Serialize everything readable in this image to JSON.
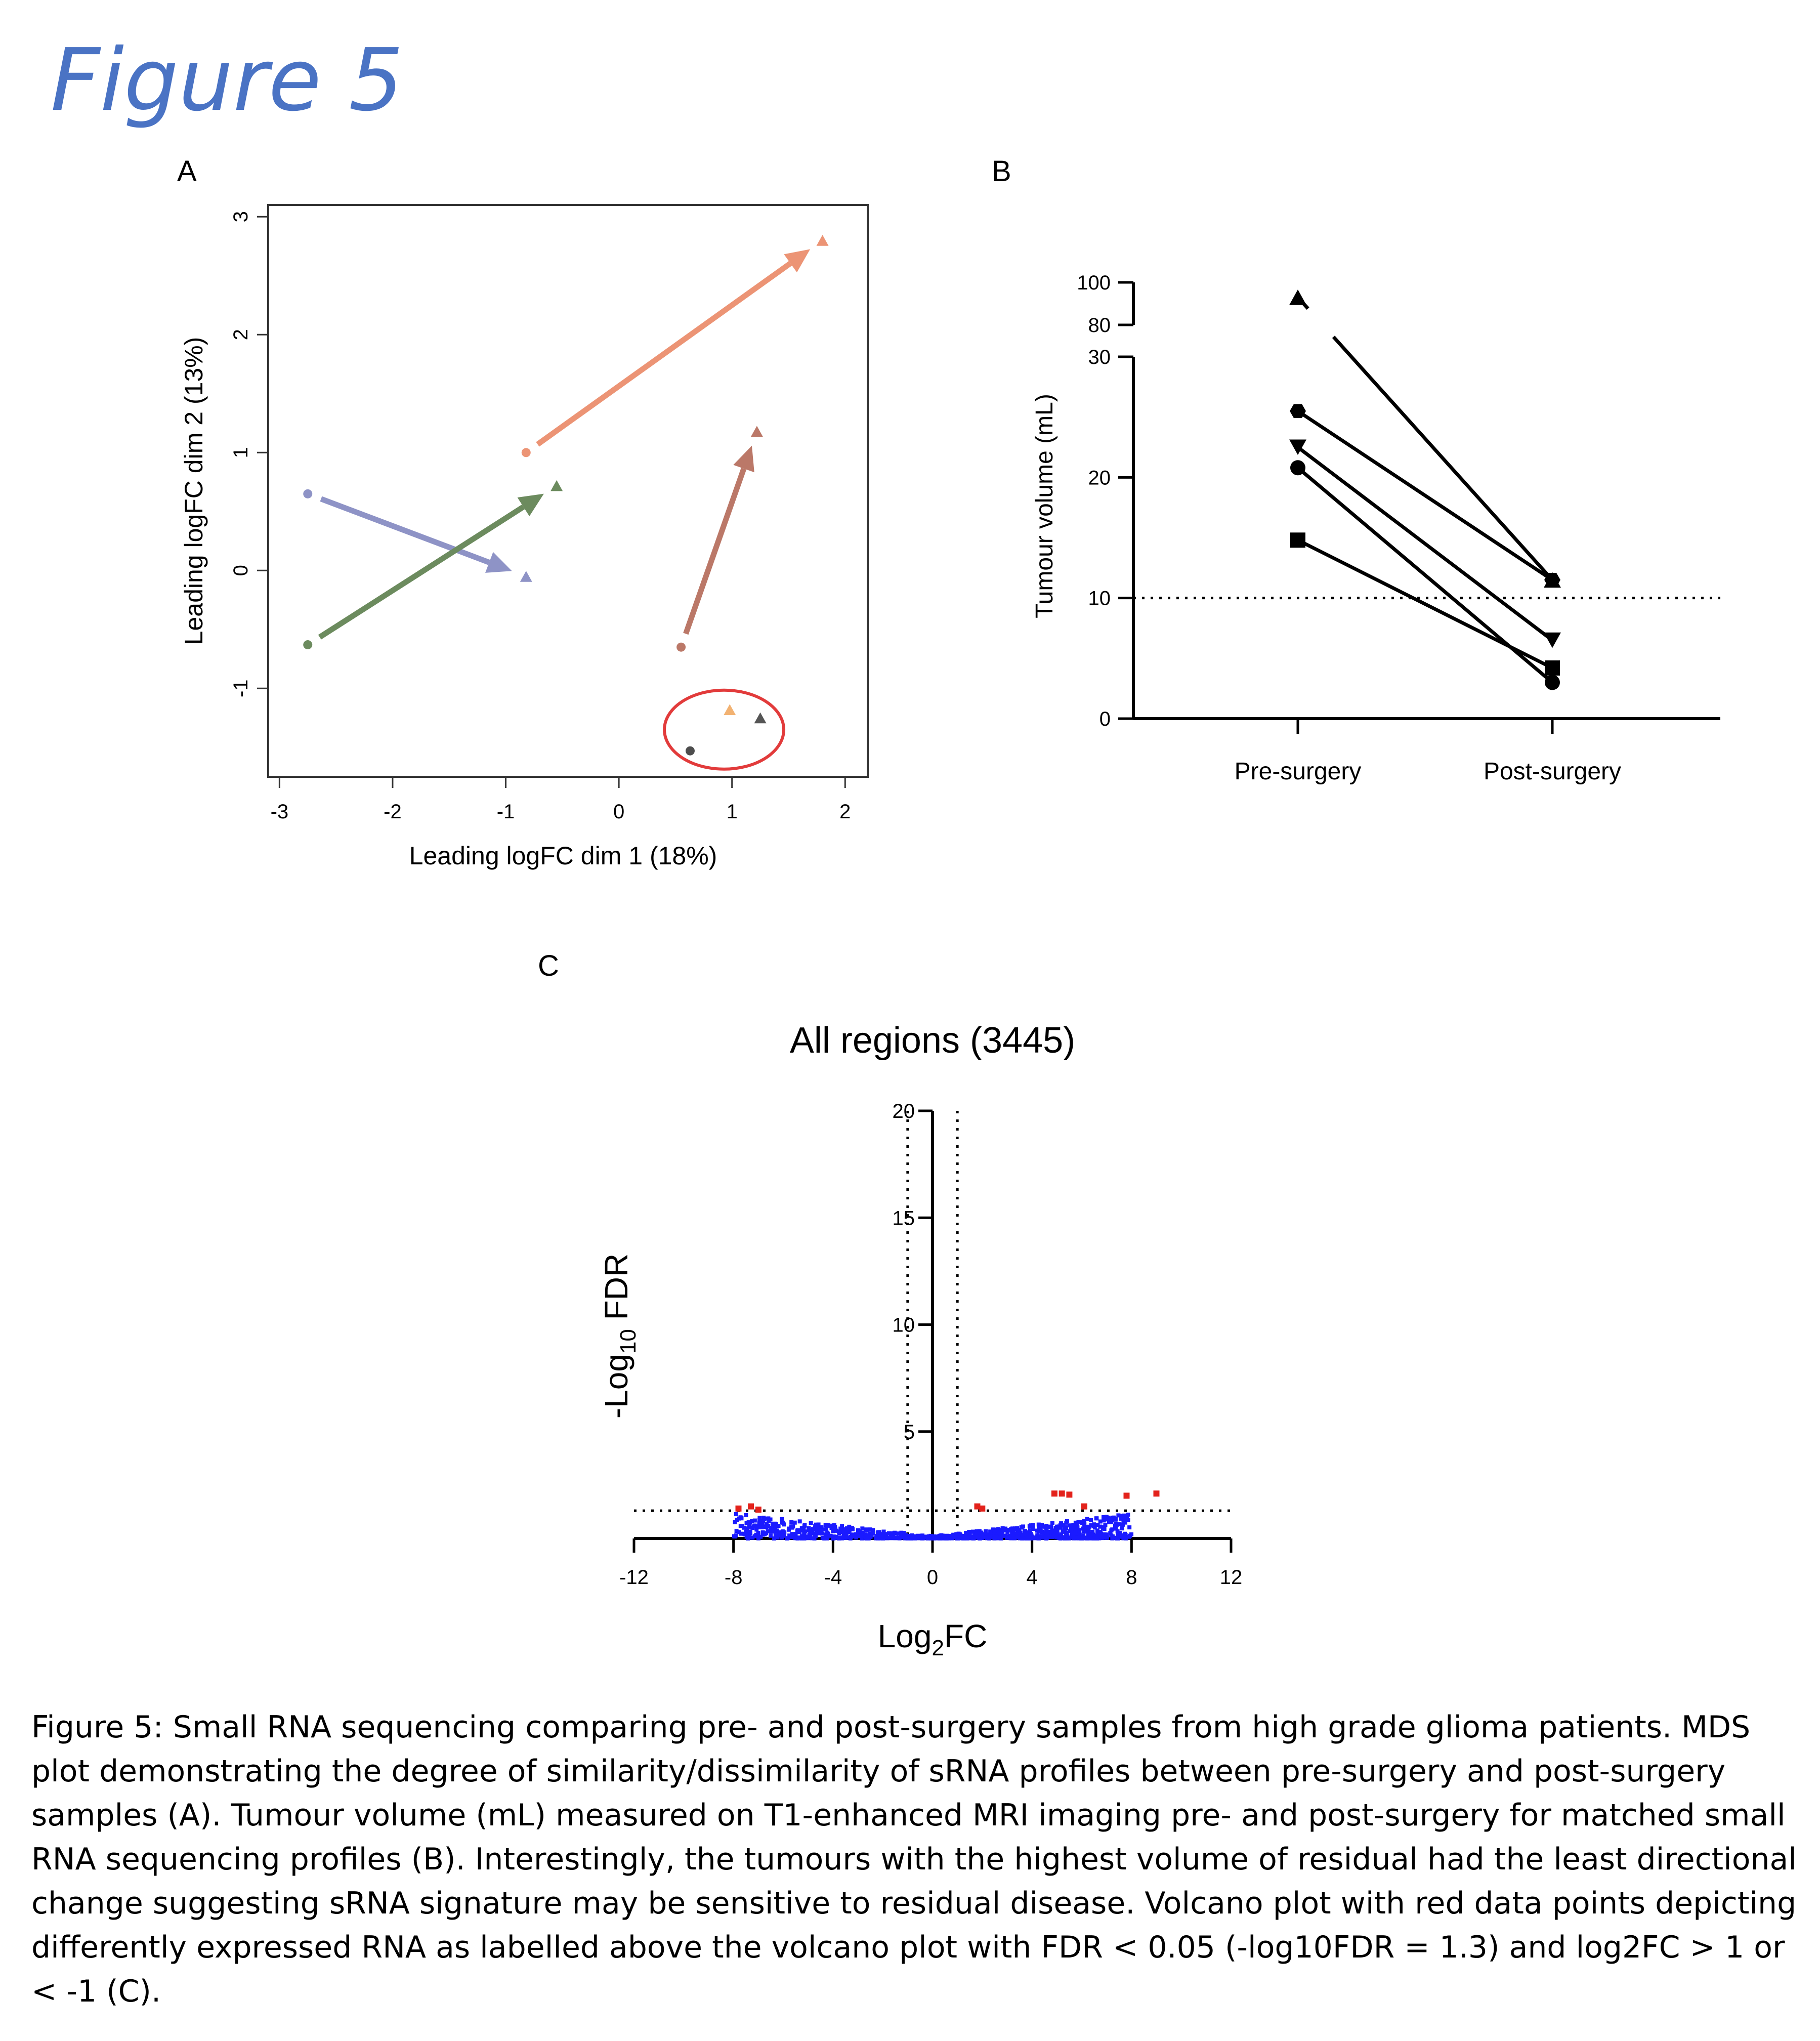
{
  "figure_title": "Figure 5",
  "panel_labels": {
    "a": "A",
    "b": "B",
    "c": "C"
  },
  "chart_data": [
    {
      "panel": "A",
      "type": "scatter",
      "title": "",
      "xlabel": "Leading logFC dim 1 (18%)",
      "ylabel": "Leading logFC dim 2 (13%)",
      "xlim": [
        -3.1,
        2.2
      ],
      "ylim": [
        -1.75,
        3.1
      ],
      "xticks": [
        -3,
        -2,
        -1,
        0,
        1,
        2
      ],
      "yticks": [
        -1,
        0,
        1,
        2,
        3
      ],
      "grid": false,
      "markers": "pre-surgery = circle, post-surgery = triangle",
      "pairs": [
        {
          "color": "#8e93c6",
          "pre": [
            -2.75,
            0.65
          ],
          "post": [
            -0.82,
            -0.05
          ]
        },
        {
          "color": "#6c8b5e",
          "pre": [
            -2.75,
            -0.63
          ],
          "post": [
            -0.55,
            0.72
          ]
        },
        {
          "color": "#ec9475",
          "pre": [
            -0.82,
            1.0
          ],
          "post": [
            1.8,
            2.8
          ]
        },
        {
          "color": "#bb7868",
          "pre": [
            0.55,
            -0.65
          ],
          "post": [
            1.22,
            1.18
          ]
        }
      ],
      "unpaired_points": [
        {
          "shape": "circle",
          "x": 0.63,
          "y": -1.53,
          "color": "#4d4d4d"
        },
        {
          "shape": "triangle",
          "x": 0.98,
          "y": -1.18,
          "color": "#f2b272"
        },
        {
          "shape": "triangle",
          "x": 1.25,
          "y": -1.25,
          "color": "#555555"
        }
      ],
      "annotation": {
        "shape": "ellipse",
        "color": "#e23b3b",
        "cx": 0.93,
        "cy": -1.35
      }
    },
    {
      "panel": "B",
      "type": "line",
      "title": "",
      "xlabel": "",
      "ylabel": "Tumour volume (mL)",
      "categories": [
        "Pre-surgery",
        "Post-surgery"
      ],
      "y_axis_break": true,
      "ylim_lower": [
        0,
        30
      ],
      "ylim_upper": [
        80,
        100
      ],
      "yticks": [
        0,
        10,
        20,
        30,
        80,
        100
      ],
      "reference_line": {
        "y": 10,
        "style": "dotted"
      },
      "series": [
        {
          "marker": "triangle-up",
          "values": [
            93,
            11.5
          ]
        },
        {
          "marker": "hexagon",
          "values": [
            25.5,
            11.5
          ]
        },
        {
          "marker": "triangle-down",
          "values": [
            22.5,
            6.5
          ]
        },
        {
          "marker": "circle",
          "values": [
            20.8,
            3.0
          ]
        },
        {
          "marker": "square",
          "values": [
            14.8,
            4.2
          ]
        }
      ]
    },
    {
      "panel": "C",
      "type": "scatter",
      "title": "All regions (3445)",
      "xlabel": "Log2FC",
      "ylabel": "-Log10 FDR",
      "xlim": [
        -12,
        12
      ],
      "ylim": [
        0,
        20
      ],
      "xticks": [
        -12,
        -8,
        -4,
        0,
        4,
        8,
        12
      ],
      "yticks": [
        5,
        10,
        15,
        20
      ],
      "thresholds": {
        "fdr_line_y": 1.3,
        "fc_lines_x": [
          -1,
          1
        ]
      },
      "colors": {
        "significant": "#e3221b",
        "not_significant": "#1a1aff"
      },
      "significant_points": [
        [
          -7.8,
          1.4
        ],
        [
          -7.3,
          1.5
        ],
        [
          -7.0,
          1.35
        ],
        [
          1.8,
          1.5
        ],
        [
          2.0,
          1.4
        ],
        [
          4.9,
          2.1
        ],
        [
          5.2,
          2.1
        ],
        [
          5.5,
          2.05
        ],
        [
          6.1,
          1.5
        ],
        [
          7.8,
          2.0
        ],
        [
          9.0,
          2.1
        ]
      ],
      "nonsignificant_summary": "approx. 3400 points, log2FC -8 to 8, -log10FDR 0 to 1.3"
    }
  ],
  "axis_labels": {
    "a_x": "Leading logFC dim 1 (18%)",
    "a_y": "Leading logFC dim 2 (13%)",
    "b_y": "Tumour volume (mL)",
    "c_title": "All regions (3445)",
    "c_x_main": "Log",
    "c_x_sub": "2",
    "c_x_end": "FC",
    "c_y_pre": "-Log",
    "c_y_sub": "10",
    "c_y_end": " FDR"
  },
  "tick_labels": {
    "a_x": [
      "-3",
      "-2",
      "-1",
      "0",
      "1",
      "2"
    ],
    "a_y": [
      "-1",
      "0",
      "1",
      "2",
      "3"
    ],
    "b_x": [
      "Pre-surgery",
      "Post-surgery"
    ],
    "b_y": [
      "0",
      "10",
      "20",
      "30",
      "80",
      "100"
    ],
    "c_x": [
      "-12",
      "-8",
      "-4",
      "0",
      "4",
      "8",
      "12"
    ],
    "c_y": [
      "5",
      "10",
      "15",
      "20"
    ]
  },
  "caption": "Figure 5: Small RNA sequencing comparing pre- and post-surgery samples from high grade glioma patients. MDS plot demonstrating the degree of similarity/dissimilarity of sRNA profiles between pre-surgery and post-surgery samples (A). Tumour volume (mL) measured on T1-enhanced MRI imaging pre- and post-surgery for matched small RNA sequencing profiles (B). Interestingly, the tumours with the highest volume of residual had the least directional change suggesting sRNA signature may be sensitive to residual disease. Volcano plot with red data points depicting differently expressed RNA as labelled above the volcano plot with FDR < 0.05 (-log10FDR = 1.3) and log2FC > 1 or < -1 (C)."
}
